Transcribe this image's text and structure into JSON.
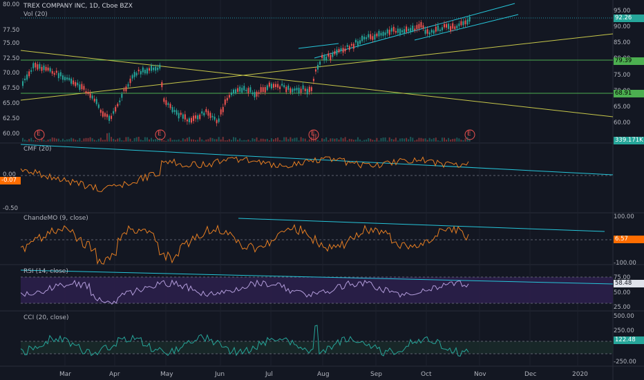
{
  "chart": {
    "title": "TREX COMPANY INC, 1D, Cboe BZX",
    "volume_label": "Vol (20)",
    "earnings_marker": "E",
    "price_axis": [
      "80.00",
      "77.50",
      "75.00",
      "72.50",
      "70.00",
      "67.50",
      "65.00",
      "62.50",
      "60.00"
    ],
    "right_axis": [
      "95.00",
      "90.00",
      "85.00",
      "80.00",
      "75.00",
      "70.00",
      "65.00",
      "60.00"
    ],
    "price_label": "92.26",
    "level_high": "79.39",
    "level_low": "68.91",
    "volume_value": "339.171K",
    "colors": {
      "up": "#26a69a",
      "down": "#ef5350",
      "level": "#4caf50",
      "trend": "#c8c84a",
      "channel": "#26c6da",
      "indicator": "#e67e22",
      "rsi_line": "#b39ddb"
    }
  },
  "cmf": {
    "title": "CMF (20)",
    "axis": [
      "0.00",
      "-0.50"
    ],
    "value": "-0.07"
  },
  "chande": {
    "title": "ChandeMO (9, close)",
    "axis": [
      "100.00",
      "-100.00"
    ],
    "value": "6.57"
  },
  "rsi": {
    "title": "RSI (14, close)",
    "axis": [
      "75.00",
      "50.00",
      "25.00"
    ],
    "value": "58.48"
  },
  "cci": {
    "title": "CCI (20, close)",
    "axis": [
      "500.00",
      "250.00",
      "-250.00"
    ],
    "value": "122.48"
  },
  "xaxis": [
    "Mar",
    "Apr",
    "May",
    "Jun",
    "Jul",
    "Aug",
    "Sep",
    "Oct",
    "Nov",
    "Dec",
    "2020"
  ]
}
